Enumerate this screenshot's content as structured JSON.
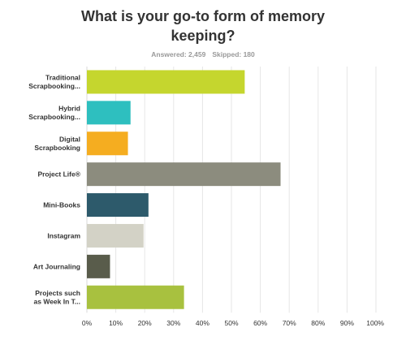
{
  "chart_data": {
    "type": "bar",
    "orientation": "horizontal",
    "title": "What is your go-to form of memory keeping?",
    "answered_label": "Answered: 2,459",
    "skipped_label": "Skipped: 180",
    "categories": [
      [
        "Traditional",
        "Scrapbooking..."
      ],
      [
        "Hybrid",
        "Scrapbooking..."
      ],
      [
        "Digital",
        "Scrapbooking"
      ],
      [
        "Project Life®"
      ],
      [
        "Mini-Books"
      ],
      [
        "Instagram"
      ],
      [
        "Art Journaling"
      ],
      [
        "Projects such",
        "as Week In T..."
      ]
    ],
    "values": [
      54.6,
      15.1,
      14.2,
      67.0,
      21.3,
      19.6,
      8.0,
      33.6
    ],
    "colors": [
      "#c5d62e",
      "#2ebfbf",
      "#f5ad20",
      "#8c8c7e",
      "#2d5a6b",
      "#d3d2c6",
      "#595c4b",
      "#a8c13f"
    ],
    "xlim": [
      0,
      100
    ],
    "ticks": [
      "0%",
      "10%",
      "20%",
      "30%",
      "40%",
      "50%",
      "60%",
      "70%",
      "80%",
      "90%",
      "100%"
    ],
    "grid": true,
    "legend": "none"
  }
}
